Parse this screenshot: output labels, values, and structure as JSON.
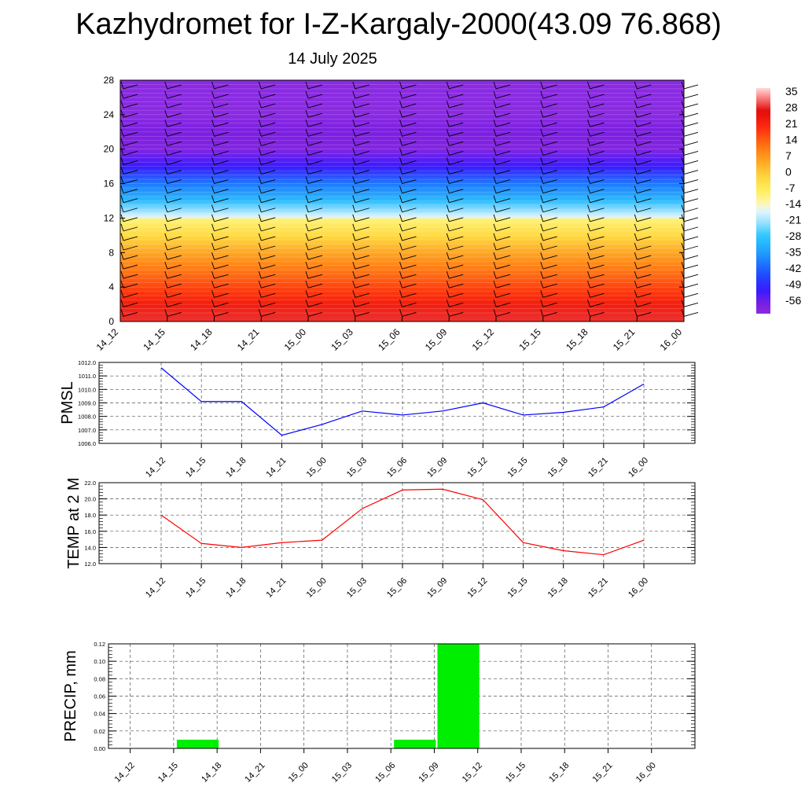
{
  "title": "Kazhydromet for I-Z-Kargaly-2000(43.09 76.868)",
  "subtitle": "14 July 2025",
  "chart_data": [
    {
      "type": "heatmap",
      "name": "vertical cross-section (temperature shading with wind barbs)",
      "x_labels": [
        "14_12",
        "14_15",
        "14_18",
        "14_21",
        "15_00",
        "15_03",
        "15_06",
        "15_09",
        "15_12",
        "15_15",
        "15_18",
        "15_21",
        "16_00"
      ],
      "ylim": [
        0,
        28
      ],
      "yticks": [
        0,
        4,
        8,
        12,
        16,
        20,
        24,
        28
      ],
      "colorbar": {
        "labels": [
          "35",
          "28",
          "21",
          "14",
          "7",
          "0",
          "-7",
          "-14",
          "-21",
          "-28",
          "-35",
          "-42",
          "-49",
          "-56"
        ],
        "range": [
          -60,
          38
        ]
      },
      "temperature_by_level": [
        [
          0,
          30
        ],
        [
          2,
          24
        ],
        [
          4,
          18
        ],
        [
          6,
          12
        ],
        [
          8,
          6
        ],
        [
          10,
          -2
        ],
        [
          11.8,
          -8
        ],
        [
          12.2,
          -16
        ],
        [
          14,
          -28
        ],
        [
          16,
          -38
        ],
        [
          18,
          -50
        ],
        [
          20,
          -58
        ],
        [
          22,
          -56
        ],
        [
          24,
          -60
        ],
        [
          28,
          -60
        ]
      ]
    },
    {
      "type": "line",
      "ylabel": "PMSL",
      "categories": [
        "14_12",
        "14_15",
        "14_18",
        "14_21",
        "15_00",
        "15_03",
        "15_06",
        "15_09",
        "15_12",
        "15_15",
        "15_18",
        "15_21",
        "16_00"
      ],
      "values": [
        1011.6,
        1009.1,
        1009.1,
        1006.6,
        1007.4,
        1008.4,
        1008.1,
        1008.4,
        1009.0,
        1008.1,
        1008.3,
        1008.7,
        1010.4
      ],
      "ylim": [
        1006.0,
        1012.0
      ],
      "yticks": [
        "1006.0",
        "1007.0",
        "1008.0",
        "1009.0",
        "1010.0",
        "1011.0",
        "1012.0"
      ],
      "color": "#0000ff"
    },
    {
      "type": "line",
      "ylabel": "TEMP at 2 M",
      "categories": [
        "14_12",
        "14_15",
        "14_18",
        "14_21",
        "15_00",
        "15_03",
        "15_06",
        "15_09",
        "15_12",
        "15_15",
        "15_18",
        "15_21",
        "16_00"
      ],
      "values": [
        18.0,
        14.5,
        14.0,
        14.6,
        14.9,
        18.8,
        21.1,
        21.2,
        19.9,
        14.6,
        13.6,
        13.1,
        14.9
      ],
      "ylim": [
        12.0,
        22.0
      ],
      "yticks": [
        "12.0",
        "14.0",
        "16.0",
        "18.0",
        "20.0",
        "22.0"
      ],
      "color": "#ff0000"
    },
    {
      "type": "bar",
      "ylabel": "PRECIP, mm",
      "categories": [
        "14_12",
        "14_15",
        "14_18",
        "14_21",
        "15_00",
        "15_03",
        "15_06",
        "15_09",
        "15_12",
        "15_15",
        "15_18",
        "15_21",
        "16_00"
      ],
      "values": [
        0,
        0.01,
        0,
        0,
        0,
        0,
        0.01,
        0.12,
        0,
        0,
        0,
        0,
        0
      ],
      "ylim": [
        0,
        0.12
      ],
      "yticks": [
        "0.00",
        "0.02",
        "0.04",
        "0.06",
        "0.08",
        "0.10",
        "0.12"
      ],
      "color": "#00ee00"
    }
  ]
}
